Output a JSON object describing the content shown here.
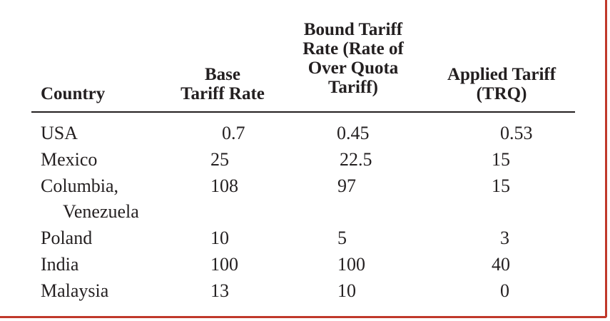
{
  "table": {
    "headers": {
      "country": "Country",
      "base": "Base\nTariff Rate",
      "bound": "Bound Tariff\nRate (Rate of\nOver Quota\nTariff)",
      "applied": "Applied Tariff\n(TRQ)"
    },
    "rows": [
      {
        "country": "USA",
        "base": "0.7",
        "bound": "0.45",
        "applied": "0.53"
      },
      {
        "country": "Mexico",
        "base": "25",
        "bound": "22.5",
        "applied": "15"
      },
      {
        "country": "Columbia,",
        "country_cont": "Venezuela",
        "base": "108",
        "bound": "97",
        "applied": "15"
      },
      {
        "country": "Poland",
        "base": "10",
        "bound": "5",
        "applied": "3"
      },
      {
        "country": "India",
        "base": "100",
        "bound": "100",
        "applied": "40"
      },
      {
        "country": "Malaysia",
        "base": "13",
        "bound": "10",
        "applied": "0"
      }
    ]
  }
}
